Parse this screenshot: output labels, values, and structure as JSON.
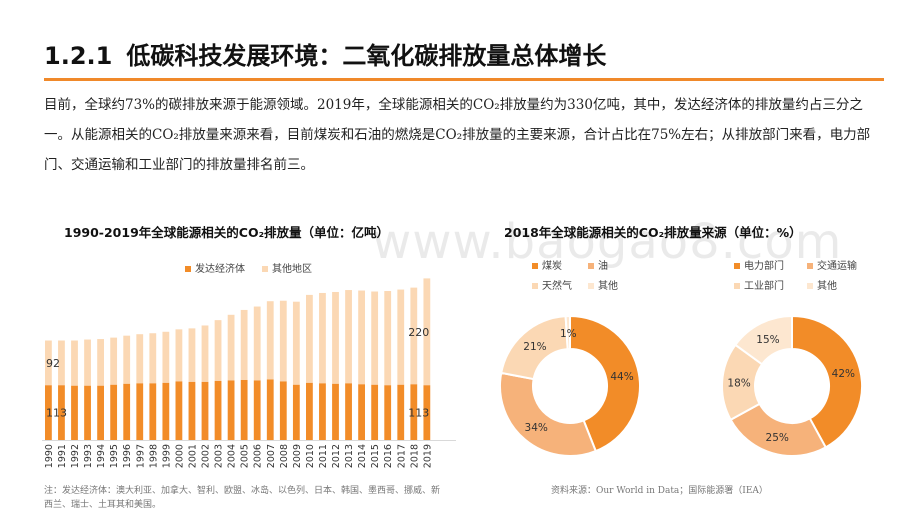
{
  "header": {
    "number": "1.2.1",
    "title": "低碳科技发展环境：二氧化碳排放量总体增长"
  },
  "intro_text": "目前，全球约73%的碳排放来源于能源领域。2019年，全球能源相关的CO₂排放量约为330亿吨，其中，发达经济体的排放量约占三分之一。从能源相关的CO₂排放量来源来看，目前煤炭和石油的燃烧是CO₂排放量的主要来源，合计占比在75%左右；从排放部门来看，电力部门、交通运输和工业部门的排放量排名前三。",
  "watermark": "www.baogao8.com",
  "colors": {
    "accent": "#f0892a",
    "dark_orange": "#f28c28",
    "light_orange": "#fbd8b4",
    "mid_orange": "#f6b27a"
  },
  "chart_data": [
    {
      "type": "bar",
      "stacked": true,
      "title": "1990-2019年全球能源相关的CO₂排放量（单位：亿吨）",
      "categories": [
        "1990",
        "1991",
        "1992",
        "1993",
        "1994",
        "1995",
        "1996",
        "1997",
        "1998",
        "1999",
        "2000",
        "2001",
        "2002",
        "2003",
        "2004",
        "2005",
        "2006",
        "2007",
        "2008",
        "2009",
        "2010",
        "2011",
        "2012",
        "2013",
        "2014",
        "2015",
        "2016",
        "2017",
        "2018",
        "2019"
      ],
      "series": [
        {
          "name": "发达经济体",
          "color": "#f28c28",
          "values": [
            113,
            113,
            112,
            112,
            112,
            114,
            116,
            117,
            117,
            118,
            121,
            120,
            120,
            122,
            123,
            124,
            123,
            125,
            121,
            114,
            118,
            117,
            116,
            117,
            115,
            114,
            113,
            114,
            115,
            113
          ],
          "labels": {
            "0": "113",
            "29": "113"
          }
        },
        {
          "name": "其他地区",
          "color": "#fbd8b4",
          "values": [
            92,
            92,
            93,
            95,
            96,
            97,
            99,
            101,
            103,
            105,
            107,
            110,
            116,
            125,
            135,
            144,
            152,
            161,
            166,
            171,
            181,
            186,
            189,
            192,
            193,
            192,
            194,
            196,
            199,
            220
          ],
          "labels": {
            "0": "92",
            "29": "220"
          }
        }
      ],
      "ylim": [
        0,
        340
      ],
      "legend": "top-center",
      "grid": false,
      "xlabel": "",
      "ylabel": ""
    },
    {
      "type": "pie",
      "donut": true,
      "title": "2018年全球能源相关的CO₂排放量来源（单位：%）",
      "subcharts": [
        {
          "slices": [
            {
              "name": "煤炭",
              "value": 44,
              "label": "44%",
              "color": "#f28c28"
            },
            {
              "name": "油",
              "value": 34,
              "label": "34%",
              "color": "#f6b27a"
            },
            {
              "name": "天然气",
              "value": 21,
              "label": "21%",
              "color": "#fbd8b4"
            },
            {
              "name": "其他",
              "value": 1,
              "label": "1%",
              "color": "#fde7d0"
            }
          ]
        },
        {
          "slices": [
            {
              "name": "电力部门",
              "value": 42,
              "label": "42%",
              "color": "#f28c28"
            },
            {
              "name": "交通运输",
              "value": 25,
              "label": "25%",
              "color": "#f6b27a"
            },
            {
              "name": "工业部门",
              "value": 18,
              "label": "18%",
              "color": "#fbd8b4"
            },
            {
              "name": "其他",
              "value": 15,
              "label": "15%",
              "color": "#fde7d0"
            }
          ]
        }
      ],
      "legend": "top"
    }
  ],
  "notes": {
    "left": "注：发达经济体：澳大利亚、加拿大、智利、欧盟、冰岛、以色列、日本、韩国、墨西哥、挪威、新西兰、瑞士、土耳其和美国。",
    "right": "资料来源：Our World in Data；国际能源署（IEA）"
  }
}
